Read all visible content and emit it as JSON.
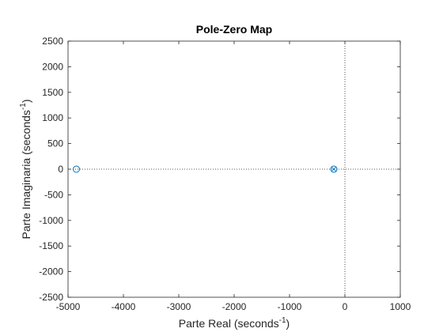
{
  "chart_data": {
    "type": "scatter",
    "title": "Pole-Zero Map",
    "xlabel": "Parte Real (seconds",
    "xlabel_sup": "-1",
    "xlabel_end": ")",
    "ylabel": "Parte Imaginaria (seconds",
    "ylabel_sup": "-1",
    "ylabel_end": ")",
    "xlim": [
      -5000,
      1000
    ],
    "ylim": [
      -2500,
      2500
    ],
    "xticks": [
      -5000,
      -4000,
      -3000,
      -2000,
      -1000,
      0,
      1000
    ],
    "yticks": [
      -2500,
      -2000,
      -1500,
      -1000,
      -500,
      0,
      500,
      1000,
      1500,
      2000,
      2500
    ],
    "zeros": [
      {
        "x": -4850,
        "y": 0
      },
      {
        "x": -200,
        "y": 0
      }
    ],
    "poles": [
      {
        "x": -200,
        "y": 0
      }
    ],
    "grid": false,
    "colors": {
      "markers": "#0072BD",
      "axes": "#262626",
      "reference_lines": "#262626"
    }
  }
}
